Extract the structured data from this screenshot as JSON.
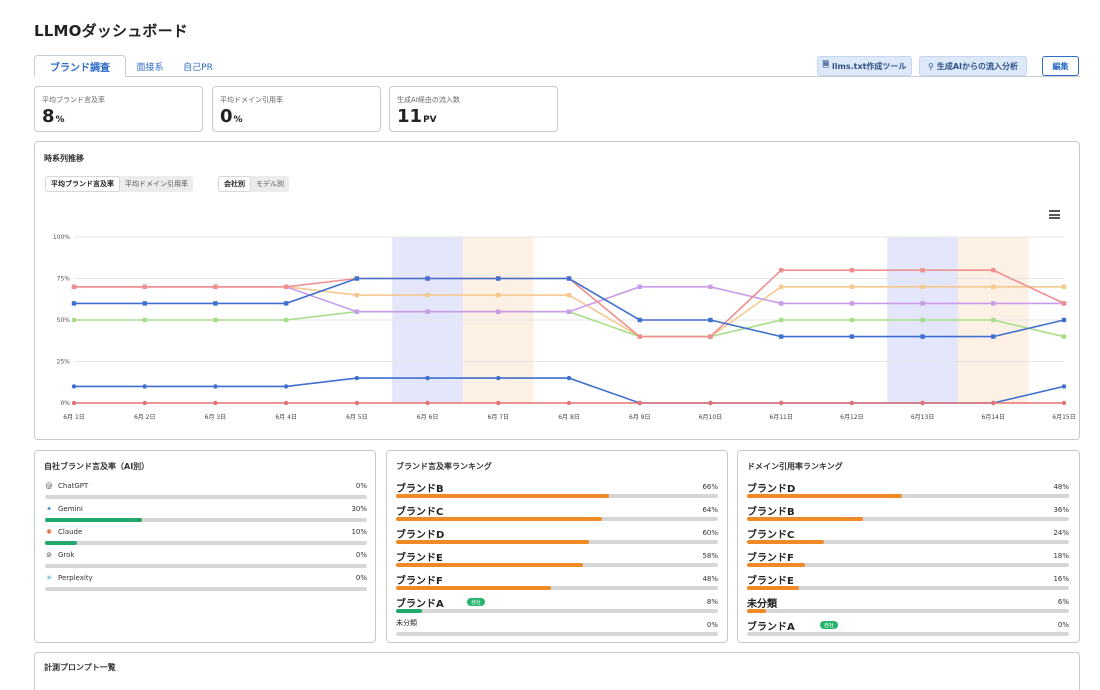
{
  "page_title": "LLMOダッシュボード",
  "tabs": [
    {
      "label": "ブランド調査"
    },
    {
      "label": "面接系"
    },
    {
      "label": "自己PR"
    }
  ],
  "toolbar": {
    "llms_tool": "llms.txt作成ツール",
    "ai_inflow": "生成AIからの流入分析",
    "edit": "編集"
  },
  "kpis": [
    {
      "label": "平均ブランド言及率",
      "value": "8",
      "unit": "%"
    },
    {
      "label": "平均ドメイン引用率",
      "value": "0",
      "unit": "%"
    },
    {
      "label": "生成AI経由の流入数",
      "value": "11",
      "unit": "PV"
    }
  ],
  "timeseries": {
    "title": "時系列推移",
    "metric_toggle": [
      "平均ブランド言及率",
      "平均ドメイン引用率"
    ],
    "group_toggle": [
      "会社別",
      "モデル別"
    ]
  },
  "chart_data": {
    "type": "line",
    "x": [
      "6月 1日",
      "6月 2日",
      "6月 3日",
      "6月 4日",
      "6月 5日",
      "6月 6日",
      "6月 7日",
      "6月 8日",
      "6月 9日",
      "6月10日",
      "6月11日",
      "6月12日",
      "6月13日",
      "6月14日",
      "6月15日"
    ],
    "ylim": [
      0,
      100
    ],
    "yticks": [
      "0%",
      "25%",
      "50%",
      "75%",
      "100%"
    ],
    "grid": true,
    "highlight_bands": [
      {
        "x": "6月 6日",
        "color": "#e4e6fb"
      },
      {
        "x": "6月 7日",
        "color": "#fdf0e4"
      },
      {
        "x": "6月13日",
        "color": "#e4e6fb"
      },
      {
        "x": "6月14日",
        "color": "#fdf0e4"
      }
    ],
    "series": [
      {
        "color": "#f5c98e",
        "values": [
          70,
          70,
          70,
          70,
          65,
          65,
          65,
          65,
          40,
          40,
          70,
          70,
          70,
          70,
          70
        ]
      },
      {
        "color": "#a8dd8a",
        "values": [
          50,
          50,
          50,
          50,
          55,
          55,
          55,
          55,
          40,
          40,
          50,
          50,
          50,
          50,
          40
        ]
      },
      {
        "color": "#c99be8",
        "values": [
          70,
          70,
          70,
          70,
          55,
          55,
          55,
          55,
          70,
          70,
          60,
          60,
          60,
          60,
          60
        ]
      },
      {
        "color": "#ef8f8f",
        "values": [
          70,
          70,
          70,
          70,
          75,
          75,
          75,
          75,
          40,
          40,
          80,
          80,
          80,
          80,
          60
        ]
      },
      {
        "color": "#3f6fcf",
        "values": [
          60,
          60,
          60,
          60,
          75,
          75,
          75,
          75,
          50,
          50,
          40,
          40,
          40,
          40,
          50
        ]
      },
      {
        "color": "#3f6fcf",
        "values": [
          10,
          10,
          10,
          10,
          15,
          15,
          15,
          15,
          0,
          0,
          0,
          0,
          0,
          0,
          10
        ]
      },
      {
        "color": "#e57373",
        "values": [
          0,
          0,
          0,
          0,
          0,
          0,
          0,
          0,
          0,
          0,
          0,
          0,
          0,
          0,
          0
        ]
      }
    ]
  },
  "ai_panel": {
    "title": "自社ブランド言及率（AI別）",
    "items": [
      {
        "name": "ChatGPT",
        "icon": "chatgpt-icon",
        "glyph": "@",
        "value": "0%",
        "pct": 0,
        "color": "#22a86b"
      },
      {
        "name": "Gemini",
        "icon": "gemini-icon",
        "glyph": "✦",
        "value": "30%",
        "pct": 30,
        "color": "#22a86b"
      },
      {
        "name": "Claude",
        "icon": "claude-icon",
        "glyph": "✺",
        "value": "10%",
        "pct": 10,
        "color": "#22a86b"
      },
      {
        "name": "Grok",
        "icon": "grok-icon",
        "glyph": "⊘",
        "value": "0%",
        "pct": 0,
        "color": "#22a86b"
      },
      {
        "name": "Perplexity",
        "icon": "perplexity-icon",
        "glyph": "✳",
        "value": "0%",
        "pct": 0,
        "color": "#22a86b"
      }
    ]
  },
  "brand_ranking": {
    "title": "ブランド言及率ランキング",
    "items": [
      {
        "name": "ブランドB",
        "value": "66%",
        "pct": 66,
        "color": "#f08a24"
      },
      {
        "name": "ブランドC",
        "value": "64%",
        "pct": 64,
        "color": "#f08a24"
      },
      {
        "name": "ブランドD",
        "value": "60%",
        "pct": 60,
        "color": "#f08a24"
      },
      {
        "name": "ブランドE",
        "value": "58%",
        "pct": 58,
        "color": "#f08a24"
      },
      {
        "name": "ブランドF",
        "value": "48%",
        "pct": 48,
        "color": "#f08a24"
      },
      {
        "name": "ブランドA",
        "value": "8%",
        "pct": 8,
        "color": "#22a86b",
        "badge": "自社"
      },
      {
        "name": "未分類",
        "value": "0%",
        "pct": 0,
        "color": "#f08a24",
        "small": true
      }
    ]
  },
  "domain_ranking": {
    "title": "ドメイン引用率ランキング",
    "items": [
      {
        "name": "ブランドD",
        "value": "48%",
        "pct": 48,
        "color": "#f08a24"
      },
      {
        "name": "ブランドB",
        "value": "36%",
        "pct": 36,
        "color": "#f08a24"
      },
      {
        "name": "ブランドC",
        "value": "24%",
        "pct": 24,
        "color": "#f08a24"
      },
      {
        "name": "ブランドF",
        "value": "18%",
        "pct": 18,
        "color": "#f08a24"
      },
      {
        "name": "ブランドE",
        "value": "16%",
        "pct": 16,
        "color": "#f08a24"
      },
      {
        "name": "未分類",
        "value": "6%",
        "pct": 6,
        "color": "#f08a24"
      },
      {
        "name": "ブランドA",
        "value": "0%",
        "pct": 0,
        "color": "#22a86b",
        "badge": "自社"
      }
    ]
  },
  "prompts_section": {
    "title": "計測プロンプト一覧"
  }
}
